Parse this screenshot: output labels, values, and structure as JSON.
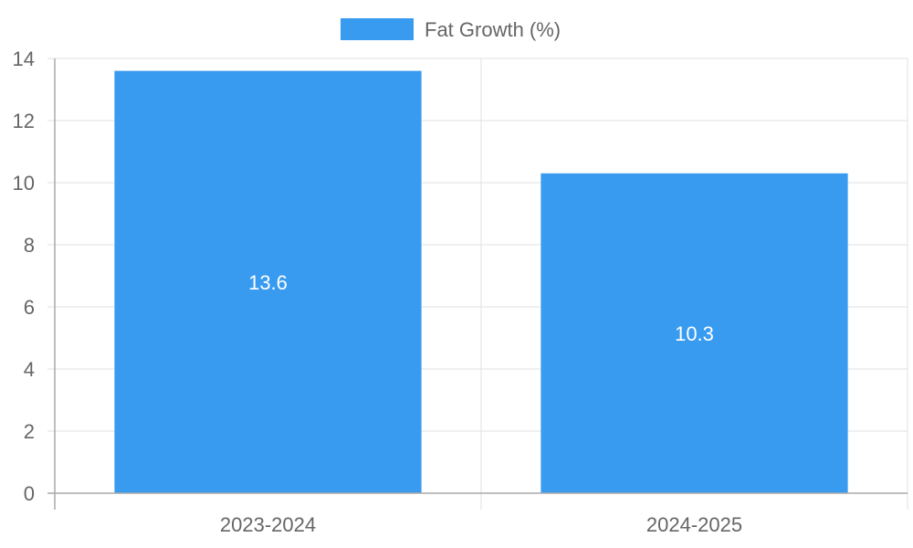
{
  "colors": {
    "bar": "#389BF0",
    "text": "#666666",
    "grid": "#e0e0e0",
    "value_label": "#ffffff"
  },
  "chart_data": {
    "type": "bar",
    "title": "",
    "xlabel": "",
    "ylabel": "",
    "categories": [
      "2023-2024",
      "2024-2025"
    ],
    "series": [
      {
        "name": "Fat Growth (%)",
        "values": [
          13.6,
          10.3
        ],
        "color": "#389BF0"
      }
    ],
    "ylim": [
      0,
      14
    ],
    "yticks": [
      0,
      2,
      4,
      6,
      8,
      10,
      12,
      14
    ],
    "grid": true,
    "legend": "top-center",
    "data_labels": [
      "13.6",
      "10.3"
    ]
  }
}
